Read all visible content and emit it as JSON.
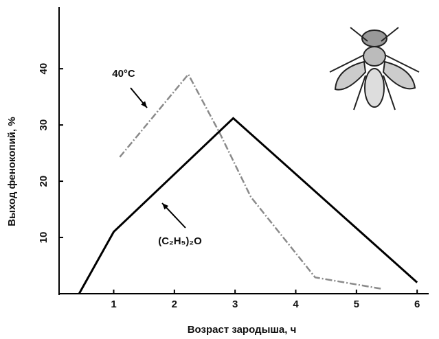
{
  "chart_data": {
    "type": "line",
    "x_label": "Возраст зародыша, ч",
    "y_label": "Выход фенокопий, %",
    "xlim": [
      0.1,
      6.1
    ],
    "xticks": [
      1,
      2,
      3,
      4,
      5,
      6
    ],
    "ylim": [
      0,
      51
    ],
    "yticks": [
      10,
      20,
      30,
      40
    ],
    "series": [
      {
        "name": "40°C",
        "color": "#8a8a8a",
        "x": [
          1.1,
          2.23,
          2.75,
          3.26,
          4.32,
          5.4
        ],
        "values": [
          24.3,
          39,
          28.5,
          17.2,
          2.9,
          0.9
        ]
      },
      {
        "name": "(C₂H₅)₂O",
        "color": "#000000",
        "x": [
          0.43,
          1.0,
          2.97,
          6.0
        ],
        "values": [
          0,
          11,
          31.2,
          2
        ]
      }
    ]
  }
}
